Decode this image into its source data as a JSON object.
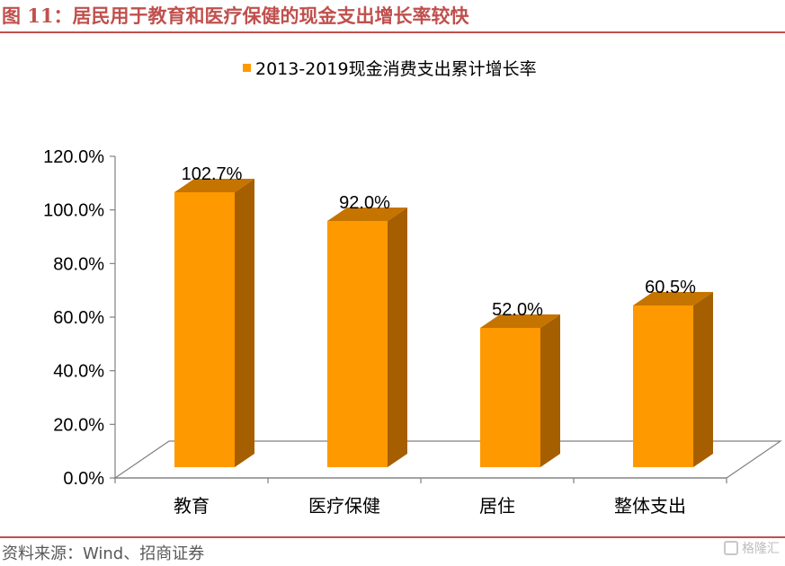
{
  "figure": {
    "title": "图 11：居民用于教育和医疗保健的现金支出增长率较快",
    "source": "资料来源：Wind、招商证券",
    "watermark": "格隆汇"
  },
  "colors": {
    "accent": "#c0504d",
    "bar_front": "#ff9900",
    "bar_side": "#a65f00",
    "bar_top": "#c57400",
    "axis": "#808080"
  },
  "chart_data": {
    "type": "bar",
    "categories": [
      "教育",
      "医疗保健",
      "居住",
      "整体支出"
    ],
    "series": [
      {
        "name": "2013-2019现金消费支出累计增长率",
        "values": [
          102.7,
          92.0,
          52.0,
          60.5
        ],
        "labels": [
          "102.7%",
          "92.0%",
          "52.0%",
          "60.5%"
        ]
      }
    ],
    "ylim": [
      0,
      120
    ],
    "yticks": [
      "0.0%",
      "20.0%",
      "40.0%",
      "60.0%",
      "80.0%",
      "100.0%",
      "120.0%"
    ],
    "legend_position": "top",
    "grid": false,
    "style": "3d"
  }
}
